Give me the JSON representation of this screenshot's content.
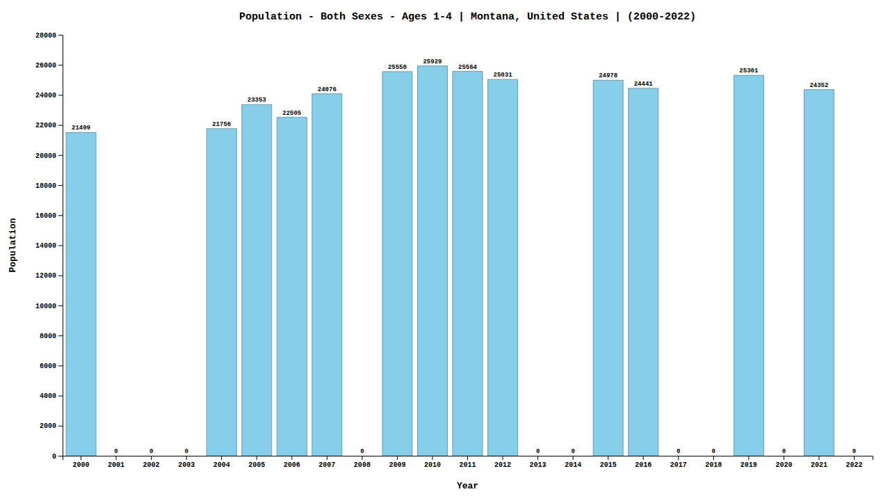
{
  "chart_data": {
    "type": "bar",
    "title": "Population - Both Sexes - Ages 1-4 | Montana, United States |  (2000-2022)",
    "x_label": "Year",
    "y_label": "Population",
    "categories": [
      "2000",
      "2001",
      "2002",
      "2003",
      "2004",
      "2005",
      "2006",
      "2007",
      "2008",
      "2009",
      "2010",
      "2011",
      "2012",
      "2013",
      "2014",
      "2015",
      "2016",
      "2017",
      "2018",
      "2019",
      "2020",
      "2021",
      "2022"
    ],
    "values": [
      21499,
      0,
      0,
      0,
      21756,
      23353,
      22505,
      24076,
      0,
      25550,
      25929,
      25564,
      25031,
      0,
      0,
      24978,
      24441,
      0,
      0,
      25301,
      0,
      24352,
      0
    ],
    "color": "#87CEEB",
    "ylim": [
      0,
      28000
    ],
    "yticks": [
      0,
      2000,
      4000,
      6000,
      8000,
      10000,
      12000,
      14000,
      16000,
      18000,
      20000,
      22000,
      24000,
      26000,
      28000
    ],
    "grid": false,
    "data_labels": true
  }
}
